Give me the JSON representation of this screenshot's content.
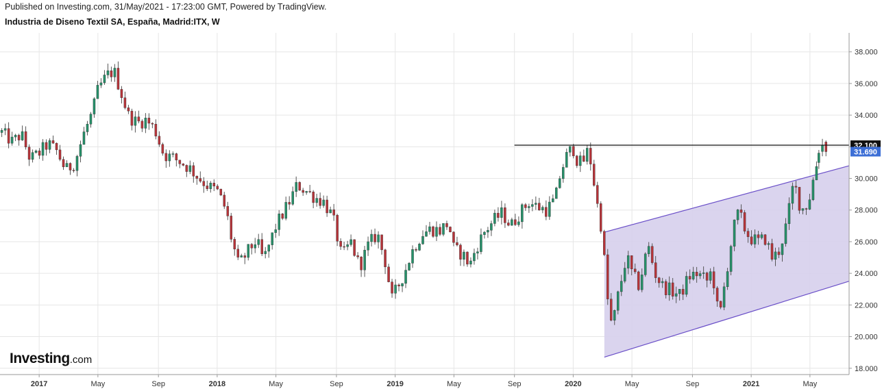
{
  "header": {
    "published": "Published on Investing.com, 31/May/2021 - 17:23:00 GMT, Powered by TradingView.",
    "symbol": "Industria de Diseno Textil SA, España, Madrid:ITX, W"
  },
  "logo": {
    "name": "Investing",
    "suffix": ".com"
  },
  "chart_data": {
    "type": "candlestick",
    "interval": "W",
    "yaxis": {
      "side": "right",
      "ticks": [
        "18.000",
        "20.000",
        "22.000",
        "24.000",
        "26.000",
        "28.000",
        "30.000",
        "32.000",
        "34.000",
        "36.000",
        "38.000"
      ],
      "ylim": [
        17.6,
        39.2
      ]
    },
    "xaxis": {
      "ticks": [
        {
          "label": "2017",
          "year": true,
          "t": 0.0
        },
        {
          "label": "May",
          "year": false,
          "t": 0.33
        },
        {
          "label": "Sep",
          "year": false,
          "t": 0.67
        },
        {
          "label": "2018",
          "year": true,
          "t": 1.0
        },
        {
          "label": "May",
          "year": false,
          "t": 1.33
        },
        {
          "label": "Sep",
          "year": false,
          "t": 1.67
        },
        {
          "label": "2019",
          "year": true,
          "t": 2.0
        },
        {
          "label": "May",
          "year": false,
          "t": 2.33
        },
        {
          "label": "Sep",
          "year": false,
          "t": 2.67
        },
        {
          "label": "2020",
          "year": true,
          "t": 3.0
        },
        {
          "label": "May",
          "year": false,
          "t": 3.33
        },
        {
          "label": "Sep",
          "year": false,
          "t": 3.67
        },
        {
          "label": "2021",
          "year": true,
          "t": 4.0
        },
        {
          "label": "May",
          "year": false,
          "t": 4.33
        }
      ],
      "xlim": [
        -0.22,
        4.55
      ]
    },
    "colors": {
      "up": "#26916a",
      "down": "#b8343a",
      "grid": "#e6e6e6"
    },
    "close_path": [
      [
        -0.22,
        33.0
      ],
      [
        -0.15,
        32.3
      ],
      [
        -0.1,
        32.8
      ],
      [
        -0.05,
        31.2
      ],
      [
        0.0,
        31.6
      ],
      [
        0.05,
        32.2
      ],
      [
        0.1,
        31.7
      ],
      [
        0.15,
        30.5
      ],
      [
        0.2,
        31.0
      ],
      [
        0.25,
        32.8
      ],
      [
        0.3,
        34.2
      ],
      [
        0.33,
        35.6
      ],
      [
        0.38,
        36.5
      ],
      [
        0.42,
        36.8
      ],
      [
        0.45,
        35.8
      ],
      [
        0.5,
        34.0
      ],
      [
        0.55,
        33.5
      ],
      [
        0.6,
        33.7
      ],
      [
        0.65,
        33.1
      ],
      [
        0.7,
        31.5
      ],
      [
        0.75,
        31.3
      ],
      [
        0.8,
        31.0
      ],
      [
        0.85,
        30.6
      ],
      [
        0.9,
        30.0
      ],
      [
        0.95,
        29.5
      ],
      [
        1.0,
        29.2
      ],
      [
        1.05,
        28.0
      ],
      [
        1.08,
        26.2
      ],
      [
        1.12,
        24.5
      ],
      [
        1.18,
        25.5
      ],
      [
        1.22,
        26.1
      ],
      [
        1.26,
        24.8
      ],
      [
        1.33,
        27.0
      ],
      [
        1.4,
        28.4
      ],
      [
        1.45,
        29.6
      ],
      [
        1.5,
        29.2
      ],
      [
        1.55,
        28.8
      ],
      [
        1.6,
        28.5
      ],
      [
        1.65,
        27.5
      ],
      [
        1.7,
        25.0
      ],
      [
        1.75,
        26.0
      ],
      [
        1.8,
        24.4
      ],
      [
        1.85,
        25.8
      ],
      [
        1.9,
        26.5
      ],
      [
        1.95,
        24.5
      ],
      [
        1.98,
        22.3
      ],
      [
        2.0,
        22.8
      ],
      [
        2.05,
        24.0
      ],
      [
        2.1,
        25.5
      ],
      [
        2.15,
        26.5
      ],
      [
        2.2,
        26.8
      ],
      [
        2.25,
        26.7
      ],
      [
        2.3,
        27.2
      ],
      [
        2.33,
        25.5
      ],
      [
        2.38,
        25.2
      ],
      [
        2.42,
        24.5
      ],
      [
        2.45,
        25.5
      ],
      [
        2.5,
        26.6
      ],
      [
        2.55,
        27.3
      ],
      [
        2.6,
        27.8
      ],
      [
        2.65,
        27.0
      ],
      [
        2.7,
        27.8
      ],
      [
        2.75,
        28.5
      ],
      [
        2.8,
        28.2
      ],
      [
        2.85,
        28.0
      ],
      [
        2.9,
        28.7
      ],
      [
        2.93,
        30.4
      ],
      [
        2.97,
        31.6
      ],
      [
        3.0,
        31.9
      ],
      [
        3.02,
        31.2
      ],
      [
        3.05,
        30.9
      ],
      [
        3.08,
        31.7
      ],
      [
        3.1,
        31.0
      ],
      [
        3.14,
        28.0
      ],
      [
        3.16,
        26.8
      ],
      [
        3.2,
        21.5
      ],
      [
        3.22,
        20.6
      ],
      [
        3.25,
        22.5
      ],
      [
        3.3,
        25.1
      ],
      [
        3.33,
        24.0
      ],
      [
        3.37,
        23.2
      ],
      [
        3.42,
        25.8
      ],
      [
        3.46,
        24.0
      ],
      [
        3.5,
        23.2
      ],
      [
        3.55,
        22.9
      ],
      [
        3.6,
        22.6
      ],
      [
        3.65,
        23.8
      ],
      [
        3.7,
        24.0
      ],
      [
        3.75,
        23.5
      ],
      [
        3.78,
        24.2
      ],
      [
        3.82,
        21.0
      ],
      [
        3.86,
        24.0
      ],
      [
        3.9,
        26.8
      ],
      [
        3.93,
        27.9
      ],
      [
        3.97,
        26.6
      ],
      [
        4.0,
        26.2
      ],
      [
        4.04,
        26.0
      ],
      [
        4.08,
        26.2
      ],
      [
        4.12,
        24.9
      ],
      [
        4.16,
        25.5
      ],
      [
        4.2,
        27.2
      ],
      [
        4.24,
        29.8
      ],
      [
        4.28,
        28.0
      ],
      [
        4.32,
        28.4
      ],
      [
        4.35,
        30.0
      ],
      [
        4.38,
        31.5
      ],
      [
        4.4,
        31.9
      ],
      [
        4.42,
        31.7
      ]
    ],
    "last_candles": [
      {
        "t": 4.38,
        "o": 31.0,
        "h": 31.8,
        "l": 30.6,
        "c": 31.6
      },
      {
        "t": 4.4,
        "o": 31.7,
        "h": 32.5,
        "l": 31.4,
        "c": 32.1
      },
      {
        "t": 4.42,
        "o": 32.3,
        "h": 32.4,
        "l": 31.4,
        "c": 31.69
      }
    ],
    "channel": {
      "color": "#6a4fc8",
      "fill": "#d6cfec",
      "upper": {
        "t0": 3.175,
        "v0": 26.6,
        "t1": 4.55,
        "v1": 30.8
      },
      "lower": {
        "t0": 3.175,
        "v0": 18.7,
        "t1": 4.55,
        "v1": 23.5
      }
    },
    "resistance": {
      "value": 32.1,
      "t_start": 2.67,
      "t_end": 4.55,
      "label": "32.100",
      "label_bg": "#111111",
      "label_color": "#ffffff"
    },
    "last_price": {
      "value": 31.69,
      "label": "31.690",
      "label_bg": "#3d6fd6",
      "label_color": "#ffffff"
    }
  }
}
